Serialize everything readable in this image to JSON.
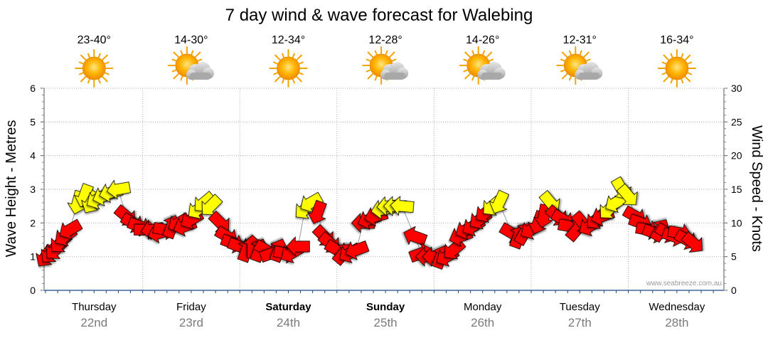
{
  "chart_data": {
    "type": "scatter",
    "title": "7 day wind & wave forecast for Walebing",
    "ylabel_left": "Wave Height - Metres",
    "ylabel_right": "Wind Speed - Knots",
    "ylim_left": [
      0,
      6
    ],
    "ylim_right": [
      0,
      30
    ],
    "yticks_left": [
      "0",
      "1",
      "2",
      "3",
      "4",
      "5",
      "6"
    ],
    "yticks_right": [
      "0",
      "5",
      "10",
      "15",
      "20",
      "25",
      "30"
    ],
    "grid": true,
    "credit": "www.seabreeze.com.au",
    "days": [
      {
        "day": "Thursday",
        "date": "22nd",
        "temp": "23-40°",
        "icon": "sun-icon",
        "bold": false
      },
      {
        "day": "Friday",
        "date": "23rd",
        "temp": "14-30°",
        "icon": "sun-cloud-icon",
        "bold": false
      },
      {
        "day": "Saturday",
        "date": "24th",
        "temp": "12-34°",
        "icon": "sun-icon",
        "bold": true
      },
      {
        "day": "Sunday",
        "date": "25th",
        "temp": "12-28°",
        "icon": "sun-cloud-icon",
        "bold": true
      },
      {
        "day": "Monday",
        "date": "26th",
        "temp": "14-26°",
        "icon": "sun-cloud-icon",
        "bold": false
      },
      {
        "day": "Tuesday",
        "date": "27th",
        "temp": "12-31°",
        "icon": "sun-cloud-icon",
        "bold": false
      },
      {
        "day": "Wednesday",
        "date": "28th",
        "temp": "16-34°",
        "icon": "sun-icon",
        "bold": false
      }
    ],
    "colors": {
      "strong": "#ff0000",
      "light": "#ffff00",
      "outline": "#000000",
      "grid": "#b0b0b0",
      "axis": "#1a4a8a"
    },
    "series": [
      {
        "name": "wind",
        "points": [
          {
            "t": 0.0,
            "kts": 5,
            "dir": 35,
            "c": "strong"
          },
          {
            "t": 0.05,
            "kts": 5.5,
            "dir": 40,
            "c": "strong"
          },
          {
            "t": 0.1,
            "kts": 6,
            "dir": 45,
            "c": "strong"
          },
          {
            "t": 0.15,
            "kts": 7,
            "dir": 45,
            "c": "strong"
          },
          {
            "t": 0.2,
            "kts": 8,
            "dir": 55,
            "c": "strong"
          },
          {
            "t": 0.25,
            "kts": 9,
            "dir": 60,
            "c": "strong"
          },
          {
            "t": 0.33,
            "kts": 13,
            "dir": 15,
            "c": "light"
          },
          {
            "t": 0.4,
            "kts": 14,
            "dir": 20,
            "c": "light"
          },
          {
            "t": 0.47,
            "kts": 13,
            "dir": 30,
            "c": "light"
          },
          {
            "t": 0.53,
            "kts": 13.5,
            "dir": 60,
            "c": "light"
          },
          {
            "t": 0.6,
            "kts": 14,
            "dir": 70,
            "c": "light"
          },
          {
            "t": 0.67,
            "kts": 14.5,
            "dir": 75,
            "c": "light"
          },
          {
            "t": 0.75,
            "kts": 15,
            "dir": 80,
            "c": "light"
          },
          {
            "t": 0.83,
            "kts": 11,
            "dir": 310,
            "c": "strong"
          },
          {
            "t": 0.9,
            "kts": 10,
            "dir": 300,
            "c": "strong"
          },
          {
            "t": 0.97,
            "kts": 9.5,
            "dir": 290,
            "c": "strong"
          },
          {
            "t": 1.03,
            "kts": 9,
            "dir": 270,
            "c": "strong"
          },
          {
            "t": 1.1,
            "kts": 9,
            "dir": 80,
            "c": "strong"
          },
          {
            "t": 1.17,
            "kts": 8.5,
            "dir": 75,
            "c": "strong"
          },
          {
            "t": 1.23,
            "kts": 9,
            "dir": 280,
            "c": "strong"
          },
          {
            "t": 1.3,
            "kts": 9.5,
            "dir": 200,
            "c": "strong"
          },
          {
            "t": 1.37,
            "kts": 10,
            "dir": 60,
            "c": "strong"
          },
          {
            "t": 1.43,
            "kts": 9.5,
            "dir": 70,
            "c": "strong"
          },
          {
            "t": 1.5,
            "kts": 10.5,
            "dir": 60,
            "c": "strong"
          },
          {
            "t": 1.57,
            "kts": 12,
            "dir": 55,
            "c": "light"
          },
          {
            "t": 1.63,
            "kts": 13,
            "dir": 50,
            "c": "light"
          },
          {
            "t": 1.7,
            "kts": 12.5,
            "dir": 45,
            "c": "light"
          },
          {
            "t": 1.8,
            "kts": 10,
            "dir": 315,
            "c": "strong"
          },
          {
            "t": 1.87,
            "kts": 8,
            "dir": 300,
            "c": "strong"
          },
          {
            "t": 1.93,
            "kts": 7,
            "dir": 290,
            "c": "strong"
          },
          {
            "t": 2.0,
            "kts": 6.5,
            "dir": 290,
            "c": "strong"
          },
          {
            "t": 2.07,
            "kts": 6,
            "dir": 200,
            "c": "strong"
          },
          {
            "t": 2.13,
            "kts": 6.5,
            "dir": 180,
            "c": "strong"
          },
          {
            "t": 2.2,
            "kts": 6,
            "dir": 200,
            "c": "strong"
          },
          {
            "t": 2.27,
            "kts": 6,
            "dir": 300,
            "c": "strong"
          },
          {
            "t": 2.33,
            "kts": 5.5,
            "dir": 250,
            "c": "strong"
          },
          {
            "t": 2.4,
            "kts": 6,
            "dir": 200,
            "c": "strong"
          },
          {
            "t": 2.47,
            "kts": 5.5,
            "dir": 280,
            "c": "strong"
          },
          {
            "t": 2.53,
            "kts": 5.5,
            "dir": 60,
            "c": "strong"
          },
          {
            "t": 2.6,
            "kts": 6.5,
            "dir": 90,
            "c": "strong"
          },
          {
            "t": 2.67,
            "kts": 12,
            "dir": 50,
            "c": "light"
          },
          {
            "t": 2.73,
            "kts": 13,
            "dir": 60,
            "c": "light"
          },
          {
            "t": 2.8,
            "kts": 11.5,
            "dir": 20,
            "c": "strong"
          },
          {
            "t": 2.87,
            "kts": 8,
            "dir": 315,
            "c": "strong"
          },
          {
            "t": 2.93,
            "kts": 7,
            "dir": 310,
            "c": "strong"
          },
          {
            "t": 3.0,
            "kts": 6,
            "dir": 300,
            "c": "strong"
          },
          {
            "t": 3.07,
            "kts": 5.5,
            "dir": 220,
            "c": "strong"
          },
          {
            "t": 3.13,
            "kts": 5.5,
            "dir": 60,
            "c": "strong"
          },
          {
            "t": 3.2,
            "kts": 6,
            "dir": 70,
            "c": "strong"
          },
          {
            "t": 3.27,
            "kts": 10,
            "dir": 90,
            "c": "strong"
          },
          {
            "t": 3.33,
            "kts": 10.5,
            "dir": 70,
            "c": "strong"
          },
          {
            "t": 3.4,
            "kts": 11,
            "dir": 75,
            "c": "strong"
          },
          {
            "t": 3.47,
            "kts": 12,
            "dir": 80,
            "c": "light"
          },
          {
            "t": 3.53,
            "kts": 12.5,
            "dir": 85,
            "c": "light"
          },
          {
            "t": 3.6,
            "kts": 12.5,
            "dir": 90,
            "c": "light"
          },
          {
            "t": 3.67,
            "kts": 12.5,
            "dir": 95,
            "c": "light"
          },
          {
            "t": 3.8,
            "kts": 8,
            "dir": 110,
            "c": "strong"
          },
          {
            "t": 3.87,
            "kts": 5.5,
            "dir": 250,
            "c": "strong"
          },
          {
            "t": 3.93,
            "kts": 5,
            "dir": 90,
            "c": "strong"
          },
          {
            "t": 4.0,
            "kts": 5,
            "dir": 90,
            "c": "strong"
          },
          {
            "t": 4.07,
            "kts": 5,
            "dir": 200,
            "c": "strong"
          },
          {
            "t": 4.13,
            "kts": 5,
            "dir": 60,
            "c": "strong"
          },
          {
            "t": 4.2,
            "kts": 6,
            "dir": 50,
            "c": "strong"
          },
          {
            "t": 4.27,
            "kts": 8,
            "dir": 70,
            "c": "strong"
          },
          {
            "t": 4.33,
            "kts": 9,
            "dir": 65,
            "c": "strong"
          },
          {
            "t": 4.4,
            "kts": 9.5,
            "dir": 60,
            "c": "strong"
          },
          {
            "t": 4.47,
            "kts": 10.5,
            "dir": 55,
            "c": "strong"
          },
          {
            "t": 4.53,
            "kts": 11.5,
            "dir": 55,
            "c": "strong"
          },
          {
            "t": 4.6,
            "kts": 12.5,
            "dir": 50,
            "c": "light"
          },
          {
            "t": 4.67,
            "kts": 13,
            "dir": 25,
            "c": "light"
          },
          {
            "t": 4.8,
            "kts": 8.5,
            "dir": 300,
            "c": "strong"
          },
          {
            "t": 4.87,
            "kts": 8,
            "dir": 200,
            "c": "strong"
          },
          {
            "t": 4.93,
            "kts": 8.5,
            "dir": 210,
            "c": "strong"
          },
          {
            "t": 5.0,
            "kts": 9,
            "dir": 60,
            "c": "strong"
          },
          {
            "t": 5.07,
            "kts": 10,
            "dir": 20,
            "c": "strong"
          },
          {
            "t": 5.13,
            "kts": 11,
            "dir": 10,
            "c": "strong"
          },
          {
            "t": 5.2,
            "kts": 13,
            "dir": 320,
            "c": "light"
          },
          {
            "t": 5.27,
            "kts": 11,
            "dir": 310,
            "c": "strong"
          },
          {
            "t": 5.33,
            "kts": 10.5,
            "dir": 300,
            "c": "strong"
          },
          {
            "t": 5.4,
            "kts": 9.5,
            "dir": 280,
            "c": "strong"
          },
          {
            "t": 5.47,
            "kts": 9,
            "dir": 220,
            "c": "strong"
          },
          {
            "t": 5.53,
            "kts": 10,
            "dir": 320,
            "c": "strong"
          },
          {
            "t": 5.6,
            "kts": 9.5,
            "dir": 60,
            "c": "strong"
          },
          {
            "t": 5.67,
            "kts": 10.5,
            "dir": 50,
            "c": "strong"
          },
          {
            "t": 5.73,
            "kts": 11,
            "dir": 70,
            "c": "strong"
          },
          {
            "t": 5.8,
            "kts": 12,
            "dir": 45,
            "c": "light"
          },
          {
            "t": 5.87,
            "kts": 13,
            "dir": 60,
            "c": "light"
          },
          {
            "t": 5.93,
            "kts": 15,
            "dir": 330,
            "c": "light"
          },
          {
            "t": 6.0,
            "kts": 14,
            "dir": 320,
            "c": "light"
          },
          {
            "t": 6.07,
            "kts": 11,
            "dir": 300,
            "c": "strong"
          },
          {
            "t": 6.13,
            "kts": 10,
            "dir": 290,
            "c": "strong"
          },
          {
            "t": 6.2,
            "kts": 9,
            "dir": 280,
            "c": "strong"
          },
          {
            "t": 6.27,
            "kts": 8.5,
            "dir": 290,
            "c": "strong"
          },
          {
            "t": 6.33,
            "kts": 9,
            "dir": 210,
            "c": "strong"
          },
          {
            "t": 6.4,
            "kts": 8.5,
            "dir": 300,
            "c": "strong"
          },
          {
            "t": 6.47,
            "kts": 8,
            "dir": 290,
            "c": "strong"
          },
          {
            "t": 6.53,
            "kts": 8.5,
            "dir": 280,
            "c": "strong"
          },
          {
            "t": 6.6,
            "kts": 7.5,
            "dir": 300,
            "c": "strong"
          },
          {
            "t": 6.67,
            "kts": 7,
            "dir": 310,
            "c": "strong"
          }
        ]
      }
    ]
  }
}
